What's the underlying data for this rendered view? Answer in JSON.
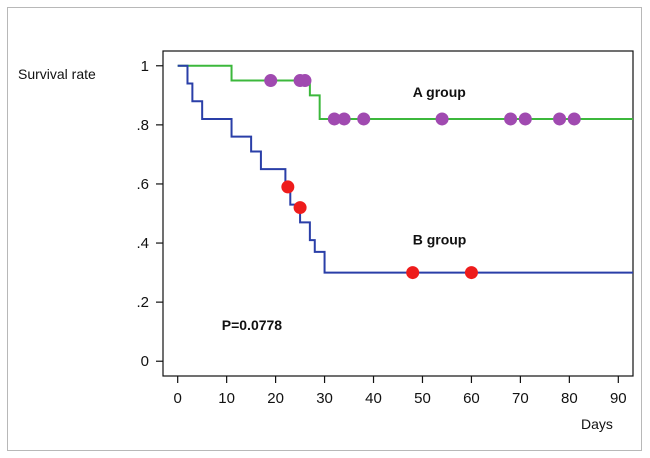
{
  "chart_data": {
    "type": "line",
    "ylabel": "Survival rate",
    "xlabel": "Days",
    "xlim": [
      -3,
      93
    ],
    "ylim": [
      -0.05,
      1.05
    ],
    "x_ticks": [
      "0",
      "10",
      "20",
      "30",
      "40",
      "50",
      "60",
      "70",
      "80",
      "90"
    ],
    "x_tick_values": [
      0,
      10,
      20,
      30,
      40,
      50,
      60,
      70,
      80,
      90
    ],
    "y_ticks": [
      "0",
      ".2",
      ".4",
      ".6",
      ".8",
      "1"
    ],
    "y_tick_values": [
      0,
      0.2,
      0.4,
      0.6,
      0.8,
      1
    ],
    "grid": false,
    "series": [
      {
        "name": "A group",
        "color": "#3cb83c",
        "marker_color": "#a04ab0",
        "steps": [
          [
            0,
            1.0
          ],
          [
            11,
            0.95
          ],
          [
            27,
            0.9
          ],
          [
            29,
            0.82
          ],
          [
            93,
            0.82
          ]
        ],
        "censored": [
          [
            19,
            0.95
          ],
          [
            25,
            0.95
          ],
          [
            26,
            0.95
          ],
          [
            32,
            0.82
          ],
          [
            34,
            0.82
          ],
          [
            38,
            0.82
          ],
          [
            54,
            0.82
          ],
          [
            68,
            0.82
          ],
          [
            71,
            0.82
          ],
          [
            78,
            0.82
          ],
          [
            81,
            0.82
          ]
        ]
      },
      {
        "name": "B group",
        "color": "#2a3fa8",
        "marker_color": "#ee1c1c",
        "steps": [
          [
            0,
            1.0
          ],
          [
            2,
            0.94
          ],
          [
            3,
            0.88
          ],
          [
            5,
            0.82
          ],
          [
            11,
            0.76
          ],
          [
            15,
            0.71
          ],
          [
            17,
            0.65
          ],
          [
            21,
            0.65
          ],
          [
            22,
            0.59
          ],
          [
            23,
            0.53
          ],
          [
            25,
            0.47
          ],
          [
            27,
            0.41
          ],
          [
            28,
            0.37
          ],
          [
            30,
            0.3
          ],
          [
            93,
            0.3
          ]
        ],
        "censored": [
          [
            22.5,
            0.59
          ],
          [
            25,
            0.52
          ],
          [
            48,
            0.3
          ],
          [
            60,
            0.3
          ]
        ]
      }
    ],
    "annotations": [
      {
        "text": "A group",
        "x": 48,
        "y": 0.895
      },
      {
        "text": "B group",
        "x": 48,
        "y": 0.395
      },
      {
        "text": "P=0.0778",
        "x": 9,
        "y": 0.105
      }
    ]
  }
}
